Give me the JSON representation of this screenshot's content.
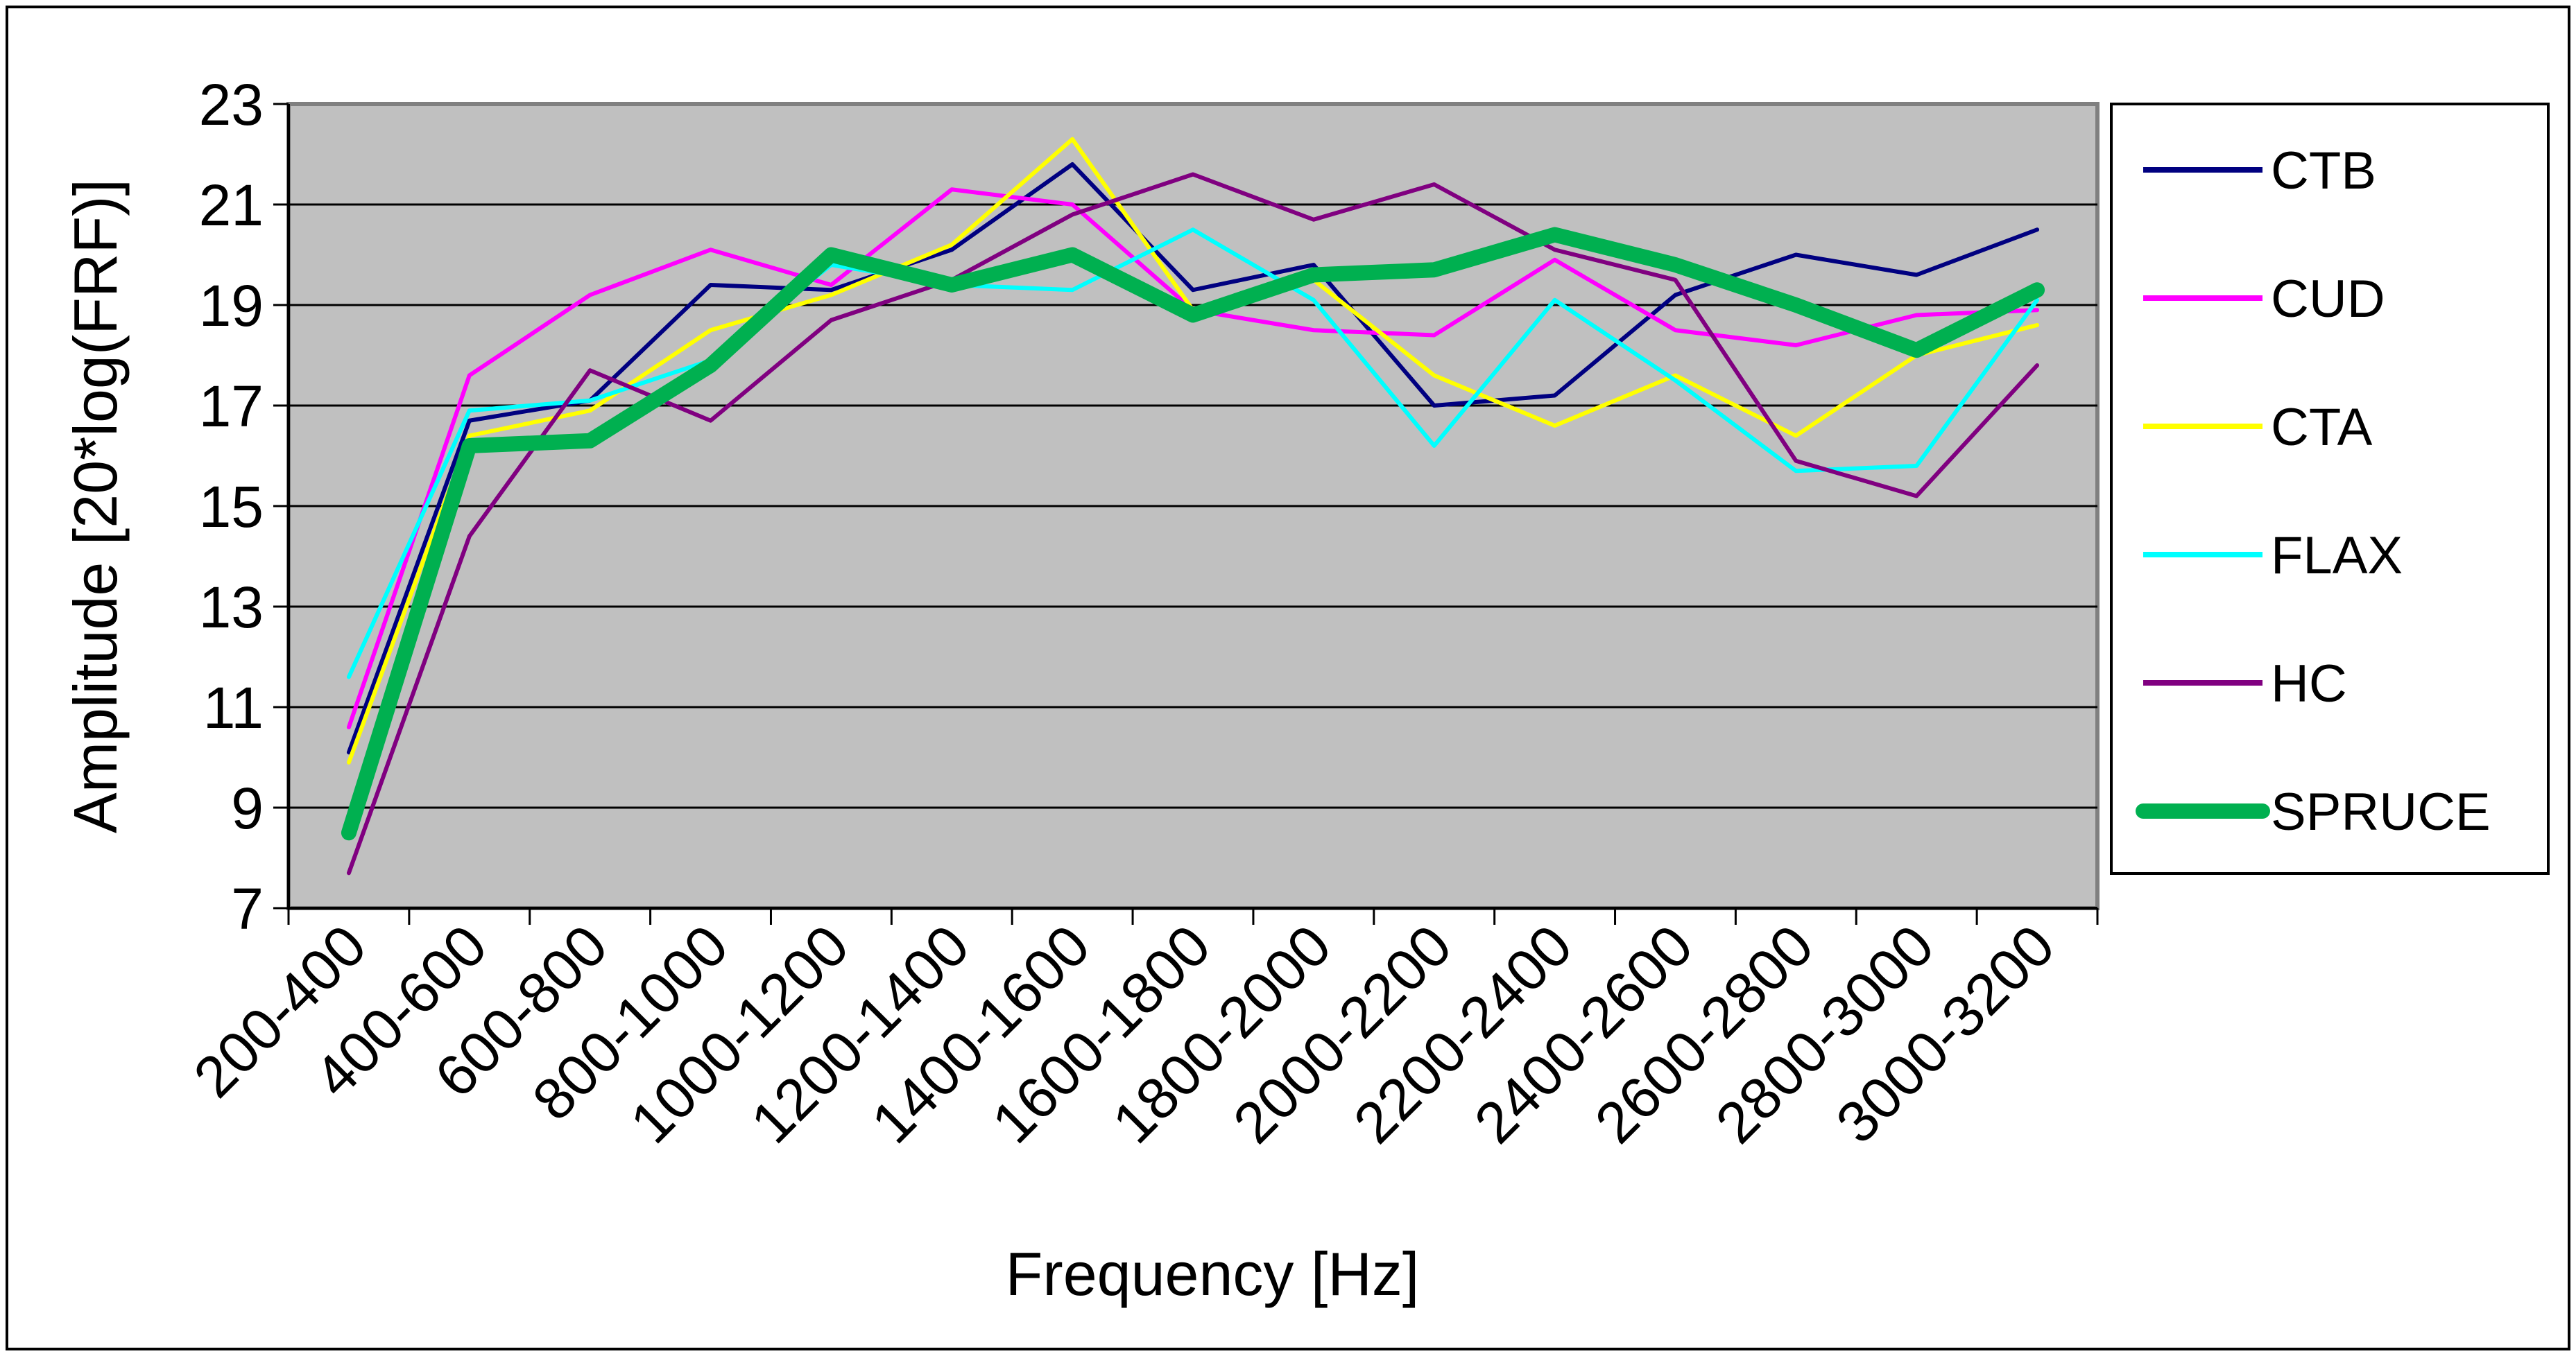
{
  "chart_data": {
    "type": "line",
    "title": "",
    "xlabel": "Frequency [Hz]",
    "ylabel": "Amplitude [20*log(FRF)]",
    "ylim": [
      7,
      23
    ],
    "yticks": [
      "7",
      "9",
      "11",
      "13",
      "15",
      "17",
      "19",
      "21",
      "23"
    ],
    "grid": true,
    "legend_position": "right",
    "plot_background": "#c0c0c0",
    "categories": [
      "200-400",
      "400-600",
      "600-800",
      "800-1000",
      "1000-1200",
      "1200-1400",
      "1400-1600",
      "1600-1800",
      "1800-2000",
      "2000-2200",
      "2200-2400",
      "2400-2600",
      "2600-2800",
      "2800-3000",
      "3000-3200"
    ],
    "series": [
      {
        "name": "CTB",
        "color": "#000080",
        "values": [
          10.1,
          16.7,
          17.1,
          19.4,
          19.3,
          20.1,
          21.8,
          19.3,
          19.8,
          17.0,
          17.2,
          19.2,
          20.0,
          19.6,
          20.5
        ]
      },
      {
        "name": "CUD",
        "color": "#ff00ff",
        "values": [
          10.6,
          17.6,
          19.2,
          20.1,
          19.4,
          21.3,
          21.0,
          18.9,
          18.5,
          18.4,
          19.9,
          18.5,
          18.2,
          18.8,
          18.9
        ]
      },
      {
        "name": "CTA",
        "color": "#ffff00",
        "values": [
          9.9,
          16.4,
          16.9,
          18.5,
          19.2,
          20.2,
          22.3,
          18.9,
          19.5,
          17.6,
          16.6,
          17.6,
          16.4,
          18.0,
          18.6
        ]
      },
      {
        "name": "FLAX",
        "color": "#00ffff",
        "values": [
          11.6,
          16.9,
          17.1,
          17.9,
          19.8,
          19.4,
          19.3,
          20.5,
          19.1,
          16.2,
          19.1,
          17.5,
          15.7,
          15.8,
          19.1
        ]
      },
      {
        "name": "HC",
        "color": "#800080",
        "values": [
          7.7,
          14.4,
          17.7,
          16.7,
          18.7,
          19.5,
          20.8,
          21.6,
          20.7,
          21.4,
          20.1,
          19.5,
          15.9,
          15.2,
          17.8
        ]
      },
      {
        "name": "SPRUCE",
        "color": "#00b050",
        "values": [
          8.5,
          16.2,
          16.3,
          17.8,
          20.0,
          19.4,
          20.0,
          18.8,
          19.6,
          19.7,
          20.4,
          19.8,
          19.0,
          18.1,
          19.3
        ]
      }
    ]
  }
}
